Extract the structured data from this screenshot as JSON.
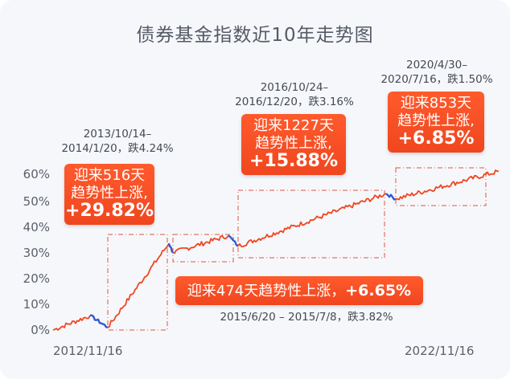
{
  "title": "债券基金指数近10年走势图",
  "chart_data": {
    "type": "line",
    "x": [
      "2012/11/16",
      "2013/10/14",
      "2014/1/20",
      "2015/6/20",
      "2015/7/8",
      "2016/10/24",
      "2016/12/20",
      "2020/4/30",
      "2020/7/16",
      "2022/11/16"
    ],
    "series": [
      {
        "values": [
          0,
          5.5,
          1.0,
          33.0,
          29.5,
          36.0,
          32.0,
          52.0,
          50.0,
          60.5
        ]
      }
    ],
    "ylim": [
      0,
      60
    ],
    "yticks": [
      "0%",
      "10%",
      "20%",
      "30%",
      "40%",
      "50%",
      "60%"
    ],
    "xtick_labels": [
      "2012/11/16",
      "2022/11/16"
    ],
    "line_color": "#f0461f",
    "drawdown_color": "#2d5bd7",
    "periods": [
      {
        "dates": "2013/10/14–\n2014/1/20，跌4.24%",
        "gain_prefix": "迎来516天\n趋势性上涨,",
        "gain": "+29.82%"
      },
      {
        "dates": "2015/6/20 – 2015/7/8，跌3.82%",
        "gain_prefix": "迎来474天趋势性上涨，",
        "gain": "+6.65%"
      },
      {
        "dates": "2016/10/24–\n2016/12/20，跌3.16%",
        "gain_prefix": "迎来1227天\n趋势性上涨,",
        "gain": "+15.88%"
      },
      {
        "dates": "2020/4/30–\n2020/7/16，跌1.50%",
        "gain_prefix": "迎来853天\n趋势性上涨,",
        "gain": "+6.85%"
      }
    ]
  }
}
